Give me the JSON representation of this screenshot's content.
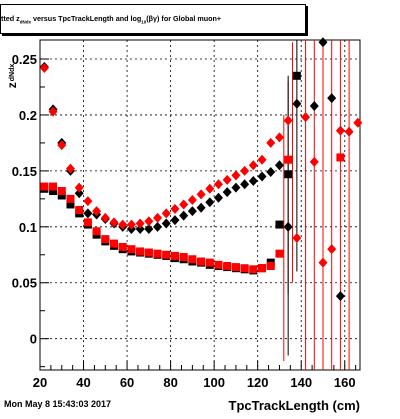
{
  "title": {
    "part1": "tted  z",
    "sub1": "dNdx",
    "part2": " versus TpcTrackLength and log",
    "sub2": "10",
    "part3": "(βγ) for Global muon+"
  },
  "footer": {
    "date": "Mon May  8 15:43:03 2017"
  },
  "chart_data": {
    "type": "scatter",
    "title": "tted z_dNdx versus TpcTrackLength and log10(βγ) for Global muon+",
    "xlabel": "TpcTrackLength (cm)",
    "ylabel": "z_dNdx",
    "xlim": [
      20,
      167
    ],
    "ylim": [
      -0.028,
      0.267
    ],
    "x_ticks": [
      20,
      40,
      60,
      80,
      100,
      120,
      140,
      160
    ],
    "y_ticks": [
      0,
      0.05,
      0.1,
      0.15,
      0.2,
      0.25
    ],
    "y_tick_labels": [
      "0",
      "0.05",
      "0.1",
      "0.15",
      "0.2",
      "0.25"
    ],
    "grid": true,
    "series": [
      {
        "marker": "diamond",
        "color": "#000000",
        "x": [
          22,
          26,
          30,
          34,
          38,
          42,
          46,
          50,
          54,
          58,
          62,
          66,
          70,
          74,
          78,
          82,
          86,
          90,
          94,
          98,
          102,
          106,
          110,
          114,
          118,
          122,
          126,
          130,
          134,
          138,
          146,
          150,
          154,
          158
        ],
        "y": [
          0.243,
          0.205,
          0.175,
          0.15,
          0.13,
          0.112,
          0.111,
          0.107,
          0.103,
          0.1,
          0.098,
          0.098,
          0.098,
          0.1,
          0.103,
          0.106,
          0.11,
          0.114,
          0.117,
          0.122,
          0.126,
          0.131,
          0.135,
          0.138,
          0.141,
          0.145,
          0.149,
          0.155,
          0.1,
          0.21,
          0.208,
          0.265,
          0.215,
          0.038
        ]
      },
      {
        "marker": "square",
        "color": "#000000",
        "x": [
          22,
          26,
          30,
          34,
          38,
          42,
          46,
          50,
          54,
          58,
          62,
          66,
          70,
          74,
          78,
          82,
          86,
          90,
          94,
          98,
          102,
          106,
          110,
          114,
          118,
          122,
          126,
          130,
          134,
          138
        ],
        "y": [
          0.134,
          0.132,
          0.128,
          0.12,
          0.112,
          0.102,
          0.093,
          0.087,
          0.083,
          0.08,
          0.078,
          0.077,
          0.076,
          0.075,
          0.074,
          0.072,
          0.071,
          0.069,
          0.068,
          0.066,
          0.065,
          0.064,
          0.063,
          0.062,
          0.061,
          0.063,
          0.068,
          0.102,
          0.147,
          0.235
        ]
      },
      {
        "marker": "diamond",
        "color": "#ff0000",
        "x": [
          22,
          26,
          30,
          34,
          38,
          42,
          46,
          50,
          54,
          58,
          62,
          66,
          70,
          74,
          78,
          82,
          86,
          90,
          94,
          98,
          102,
          106,
          110,
          114,
          118,
          122,
          126,
          130,
          134,
          138,
          142,
          146,
          150,
          154,
          158,
          162,
          166
        ],
        "y": [
          0.242,
          0.203,
          0.173,
          0.152,
          0.135,
          0.123,
          0.114,
          0.108,
          0.104,
          0.102,
          0.102,
          0.103,
          0.105,
          0.108,
          0.112,
          0.116,
          0.12,
          0.124,
          0.129,
          0.134,
          0.138,
          0.142,
          0.146,
          0.15,
          0.155,
          0.16,
          0.175,
          0.18,
          0.195,
          0.09,
          0.198,
          0.158,
          0.068,
          0.08,
          0.186,
          0.185,
          0.193
        ]
      },
      {
        "marker": "square",
        "color": "#ff0000",
        "x": [
          22,
          26,
          30,
          34,
          38,
          42,
          46,
          50,
          54,
          58,
          62,
          66,
          70,
          74,
          78,
          82,
          86,
          90,
          94,
          98,
          102,
          106,
          110,
          114,
          118,
          122,
          126,
          130,
          134,
          158
        ],
        "y": [
          0.136,
          0.136,
          0.132,
          0.125,
          0.115,
          0.104,
          0.096,
          0.089,
          0.085,
          0.082,
          0.08,
          0.078,
          0.077,
          0.076,
          0.075,
          0.074,
          0.073,
          0.071,
          0.069,
          0.068,
          0.066,
          0.065,
          0.064,
          0.063,
          0.062,
          0.063,
          0.065,
          0.076,
          0.16,
          0.162
        ]
      }
    ],
    "error_bars": {
      "color": "#ff0000",
      "x": [
        132,
        134,
        136,
        142,
        146,
        150,
        154,
        158,
        162
      ],
      "ylo": [
        -0.02,
        0.04,
        0.05,
        -0.028,
        -0.028,
        -0.028,
        -0.028,
        -0.028,
        -0.028
      ],
      "yhi": [
        0.2,
        0.23,
        0.265,
        0.267,
        0.267,
        0.267,
        0.267,
        0.267,
        0.267
      ]
    },
    "black_error_bars": {
      "color": "#000000",
      "x": [
        134,
        138
      ],
      "ylo": [
        -0.015,
        0.06
      ],
      "yhi": [
        0.235,
        0.267
      ]
    }
  }
}
